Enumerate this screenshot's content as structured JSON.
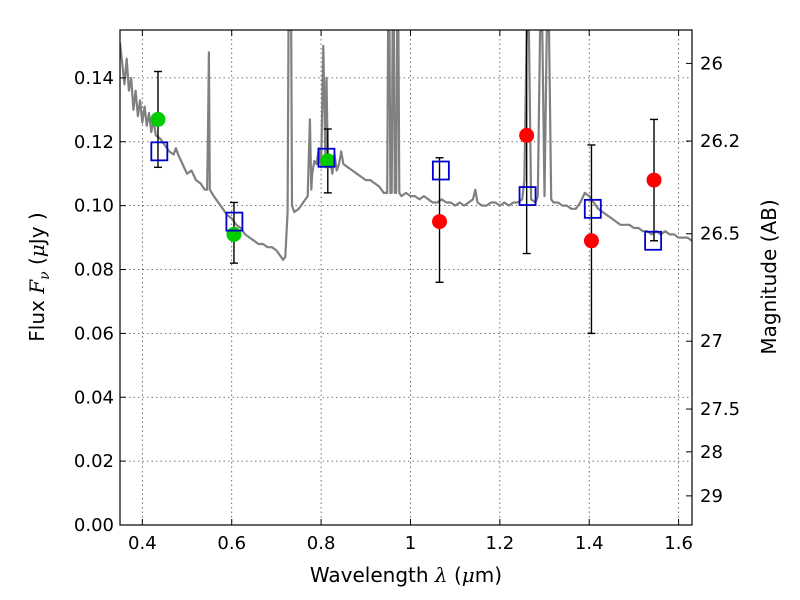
{
  "chart_data": {
    "type": "scatter",
    "xlabel": "Wavelength",
    "xlabel_math": "λ",
    "xlabel_unit_open": " (",
    "xlabel_unit_mu": "μ",
    "xlabel_unit_close": "m)",
    "ylabel": "Flux",
    "ylabel_math": "F",
    "ylabel_math_sub": "ν",
    "ylabel_unit_open": " (",
    "ylabel_unit_mu": "μ",
    "ylabel_unit_close": "Jy )",
    "y2label": "Magnitude (AB)",
    "xlim": [
      0.35,
      1.63
    ],
    "ylim": [
      0.0,
      0.155
    ],
    "grid": true,
    "x_ticks": [
      {
        "v": 0.4,
        "label": "0.4"
      },
      {
        "v": 0.6,
        "label": "0.6"
      },
      {
        "v": 0.8,
        "label": "0.8"
      },
      {
        "v": 1.0,
        "label": "1"
      },
      {
        "v": 1.2,
        "label": "1.2"
      },
      {
        "v": 1.4,
        "label": "1.4"
      },
      {
        "v": 1.6,
        "label": "1.6"
      }
    ],
    "y_ticks": [
      {
        "v": 0.0,
        "label": "0.00"
      },
      {
        "v": 0.02,
        "label": "0.02"
      },
      {
        "v": 0.04,
        "label": "0.04"
      },
      {
        "v": 0.06,
        "label": "0.06"
      },
      {
        "v": 0.08,
        "label": "0.08"
      },
      {
        "v": 0.1,
        "label": "0.10"
      },
      {
        "v": 0.12,
        "label": "0.12"
      },
      {
        "v": 0.14,
        "label": "0.14"
      }
    ],
    "y2_ticks": [
      {
        "mag": 26,
        "label": "26"
      },
      {
        "mag": 26.2,
        "label": "26.2"
      },
      {
        "mag": 26.5,
        "label": "26.5"
      },
      {
        "mag": 27,
        "label": "27"
      },
      {
        "mag": 27.5,
        "label": "27.5"
      },
      {
        "mag": 28,
        "label": "28"
      },
      {
        "mag": 29,
        "label": "29"
      }
    ],
    "model_spectrum": {
      "color": "#808080",
      "points": [
        [
          0.35,
          0.151
        ],
        [
          0.36,
          0.138
        ],
        [
          0.365,
          0.146
        ],
        [
          0.37,
          0.136
        ],
        [
          0.375,
          0.14
        ],
        [
          0.38,
          0.13
        ],
        [
          0.385,
          0.136
        ],
        [
          0.39,
          0.128
        ],
        [
          0.395,
          0.133
        ],
        [
          0.4,
          0.126
        ],
        [
          0.405,
          0.131
        ],
        [
          0.41,
          0.125
        ],
        [
          0.415,
          0.129
        ],
        [
          0.42,
          0.123
        ],
        [
          0.425,
          0.127
        ],
        [
          0.43,
          0.122
        ],
        [
          0.44,
          0.121
        ],
        [
          0.45,
          0.119
        ],
        [
          0.46,
          0.117
        ],
        [
          0.47,
          0.116
        ],
        [
          0.475,
          0.118
        ],
        [
          0.48,
          0.116
        ],
        [
          0.49,
          0.113
        ],
        [
          0.5,
          0.11
        ],
        [
          0.51,
          0.111
        ],
        [
          0.52,
          0.108
        ],
        [
          0.53,
          0.107
        ],
        [
          0.54,
          0.105
        ],
        [
          0.545,
          0.105
        ],
        [
          0.547,
          0.123
        ],
        [
          0.549,
          0.148
        ],
        [
          0.551,
          0.105
        ],
        [
          0.56,
          0.103
        ],
        [
          0.57,
          0.101
        ],
        [
          0.58,
          0.099
        ],
        [
          0.59,
          0.097
        ],
        [
          0.6,
          0.096
        ],
        [
          0.61,
          0.094
        ],
        [
          0.62,
          0.093
        ],
        [
          0.63,
          0.091
        ],
        [
          0.64,
          0.09
        ],
        [
          0.65,
          0.089
        ],
        [
          0.66,
          0.088
        ],
        [
          0.67,
          0.088
        ],
        [
          0.68,
          0.087
        ],
        [
          0.69,
          0.087
        ],
        [
          0.7,
          0.086
        ],
        [
          0.71,
          0.084
        ],
        [
          0.715,
          0.083
        ],
        [
          0.72,
          0.084
        ],
        [
          0.725,
          0.098
        ],
        [
          0.727,
          0.155
        ],
        [
          0.733,
          0.155
        ],
        [
          0.735,
          0.1
        ],
        [
          0.74,
          0.098
        ],
        [
          0.75,
          0.099
        ],
        [
          0.76,
          0.101
        ],
        [
          0.77,
          0.103
        ],
        [
          0.775,
          0.127
        ],
        [
          0.778,
          0.105
        ],
        [
          0.78,
          0.11
        ],
        [
          0.785,
          0.114
        ],
        [
          0.79,
          0.113
        ],
        [
          0.795,
          0.118
        ],
        [
          0.8,
          0.112
        ],
        [
          0.805,
          0.15
        ],
        [
          0.81,
          0.112
        ],
        [
          0.812,
          0.14
        ],
        [
          0.815,
          0.113
        ],
        [
          0.82,
          0.115
        ],
        [
          0.825,
          0.11
        ],
        [
          0.83,
          0.116
        ],
        [
          0.835,
          0.111
        ],
        [
          0.84,
          0.113
        ],
        [
          0.845,
          0.117
        ],
        [
          0.85,
          0.113
        ],
        [
          0.86,
          0.112
        ],
        [
          0.87,
          0.111
        ],
        [
          0.88,
          0.11
        ],
        [
          0.89,
          0.109
        ],
        [
          0.9,
          0.108
        ],
        [
          0.91,
          0.108
        ],
        [
          0.92,
          0.107
        ],
        [
          0.93,
          0.106
        ],
        [
          0.94,
          0.104
        ],
        [
          0.948,
          0.104
        ],
        [
          0.95,
          0.155
        ],
        [
          0.953,
          0.155
        ],
        [
          0.955,
          0.104
        ],
        [
          0.958,
          0.104
        ],
        [
          0.96,
          0.155
        ],
        [
          0.963,
          0.155
        ],
        [
          0.965,
          0.104
        ],
        [
          0.968,
          0.104
        ],
        [
          0.97,
          0.155
        ],
        [
          0.973,
          0.155
        ],
        [
          0.975,
          0.104
        ],
        [
          0.98,
          0.103
        ],
        [
          0.99,
          0.104
        ],
        [
          1.0,
          0.103
        ],
        [
          1.01,
          0.103
        ],
        [
          1.02,
          0.102
        ],
        [
          1.03,
          0.103
        ],
        [
          1.04,
          0.102
        ],
        [
          1.05,
          0.101
        ],
        [
          1.06,
          0.101
        ],
        [
          1.07,
          0.102
        ],
        [
          1.08,
          0.101
        ],
        [
          1.09,
          0.101
        ],
        [
          1.1,
          0.1
        ],
        [
          1.11,
          0.101
        ],
        [
          1.12,
          0.1
        ],
        [
          1.13,
          0.101
        ],
        [
          1.14,
          0.102
        ],
        [
          1.145,
          0.105
        ],
        [
          1.15,
          0.101
        ],
        [
          1.16,
          0.1
        ],
        [
          1.17,
          0.1
        ],
        [
          1.18,
          0.101
        ],
        [
          1.19,
          0.101
        ],
        [
          1.2,
          0.1
        ],
        [
          1.21,
          0.101
        ],
        [
          1.22,
          0.1
        ],
        [
          1.23,
          0.101
        ],
        [
          1.24,
          0.101
        ],
        [
          1.25,
          0.102
        ],
        [
          1.255,
          0.108
        ],
        [
          1.26,
          0.155
        ],
        [
          1.265,
          0.155
        ],
        [
          1.27,
          0.102
        ],
        [
          1.28,
          0.101
        ],
        [
          1.285,
          0.103
        ],
        [
          1.29,
          0.155
        ],
        [
          1.295,
          0.155
        ],
        [
          1.3,
          0.103
        ],
        [
          1.305,
          0.155
        ],
        [
          1.31,
          0.155
        ],
        [
          1.315,
          0.102
        ],
        [
          1.32,
          0.101
        ],
        [
          1.33,
          0.101
        ],
        [
          1.34,
          0.1
        ],
        [
          1.35,
          0.1
        ],
        [
          1.36,
          0.099
        ],
        [
          1.37,
          0.099
        ],
        [
          1.38,
          0.101
        ],
        [
          1.39,
          0.104
        ],
        [
          1.4,
          0.103
        ],
        [
          1.41,
          0.101
        ],
        [
          1.42,
          0.099
        ],
        [
          1.43,
          0.098
        ],
        [
          1.44,
          0.097
        ],
        [
          1.45,
          0.096
        ],
        [
          1.46,
          0.095
        ],
        [
          1.47,
          0.094
        ],
        [
          1.48,
          0.094
        ],
        [
          1.49,
          0.094
        ],
        [
          1.5,
          0.093
        ],
        [
          1.51,
          0.093
        ],
        [
          1.52,
          0.092
        ],
        [
          1.53,
          0.092
        ],
        [
          1.54,
          0.091
        ],
        [
          1.55,
          0.092
        ],
        [
          1.56,
          0.091
        ],
        [
          1.57,
          0.092
        ],
        [
          1.58,
          0.091
        ],
        [
          1.59,
          0.091
        ],
        [
          1.6,
          0.09
        ],
        [
          1.61,
          0.09
        ],
        [
          1.62,
          0.09
        ],
        [
          1.63,
          0.089
        ]
      ]
    },
    "series": [
      {
        "marker": "circle",
        "color": "#00cc00",
        "points": [
          [
            0.435,
            0.127
          ],
          [
            0.605,
            0.091
          ],
          [
            0.815,
            0.114
          ]
        ]
      },
      {
        "marker": "circle",
        "color": "#ff0000",
        "points": [
          [
            1.065,
            0.095
          ],
          [
            1.26,
            0.122
          ],
          [
            1.405,
            0.089
          ],
          [
            1.545,
            0.108
          ]
        ]
      },
      {
        "marker": "square",
        "color": "#0000cc",
        "points": [
          [
            0.438,
            0.117
          ],
          [
            0.606,
            0.095
          ],
          [
            0.812,
            0.115
          ],
          [
            1.068,
            0.111
          ],
          [
            1.262,
            0.103
          ],
          [
            1.408,
            0.099
          ],
          [
            1.543,
            0.089
          ]
        ]
      }
    ],
    "error_bars": [
      {
        "x": 0.435,
        "ylo": 0.112,
        "yhi": 0.142
      },
      {
        "x": 0.605,
        "ylo": 0.082,
        "yhi": 0.101
      },
      {
        "x": 0.815,
        "ylo": 0.104,
        "yhi": 0.124
      },
      {
        "x": 1.065,
        "ylo": 0.076,
        "yhi": 0.115
      },
      {
        "x": 1.26,
        "ylo": 0.085,
        "yhi": 0.16
      },
      {
        "x": 1.405,
        "ylo": 0.06,
        "yhi": 0.119
      },
      {
        "x": 1.545,
        "ylo": 0.089,
        "yhi": 0.127
      }
    ]
  }
}
